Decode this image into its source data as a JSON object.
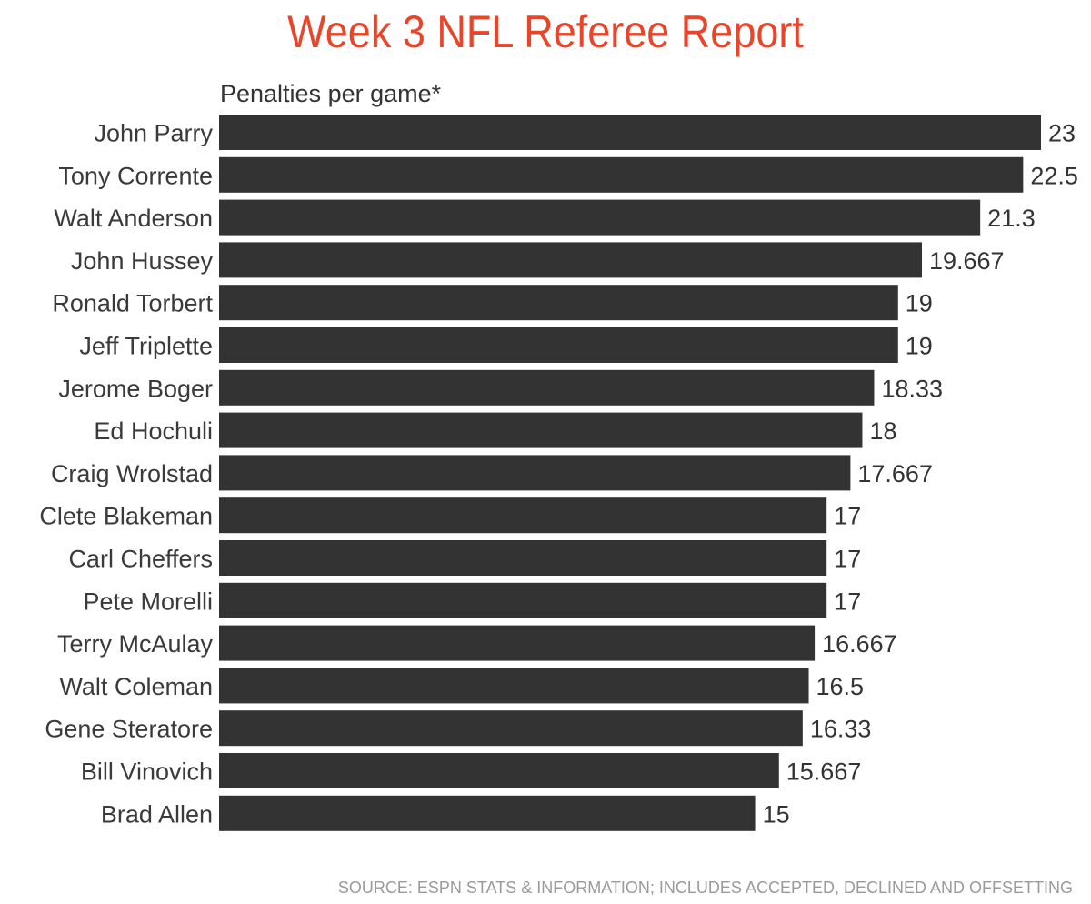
{
  "chart_data": {
    "type": "bar",
    "orientation": "horizontal",
    "title": "Week 3 NFL Referee Report",
    "subtitle": "Penalties per game*",
    "source": "SOURCE: ESPN STATS & INFORMATION; INCLUDES ACCEPTED, DECLINED AND OFFSETTING",
    "bar_color": "#333333",
    "title_color": "#e8452a",
    "xlim": [
      0,
      23
    ],
    "grid": false,
    "categories": [
      "John Parry",
      "Tony Corrente",
      "Walt Anderson",
      "John Hussey",
      "Ronald Torbert",
      "Jeff Triplette",
      "Jerome Boger",
      "Ed Hochuli",
      "Craig Wrolstad",
      "Clete Blakeman",
      "Carl Cheffers",
      "Pete Morelli",
      "Terry McAulay",
      "Walt Coleman",
      "Gene Steratore",
      "Bill Vinovich",
      "Brad Allen"
    ],
    "values": [
      23,
      22.5,
      21.3,
      19.667,
      19,
      19,
      18.33,
      18,
      17.667,
      17,
      17,
      17,
      16.667,
      16.5,
      16.33,
      15.667,
      15
    ],
    "value_labels": [
      "23",
      "22.5",
      "21.3",
      "19.667",
      "19",
      "19",
      "18.33",
      "18",
      "17.667",
      "17",
      "17",
      "17",
      "16.667",
      "16.5",
      "16.33",
      "15.667",
      "15"
    ]
  }
}
